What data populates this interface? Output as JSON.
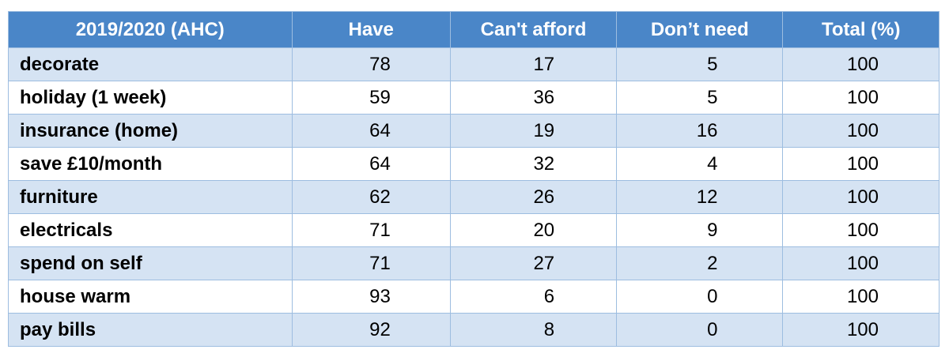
{
  "table": {
    "header": [
      "2019/2020 (AHC)",
      "Have",
      "Can't afford",
      "Don’t need",
      "Total (%)"
    ],
    "rows": [
      [
        "decorate",
        78,
        17,
        5,
        100
      ],
      [
        "holiday (1 week)",
        59,
        36,
        5,
        100
      ],
      [
        "insurance (home)",
        64,
        19,
        16,
        100
      ],
      [
        "save £10/month",
        64,
        32,
        4,
        100
      ],
      [
        "furniture",
        62,
        26,
        12,
        100
      ],
      [
        "electricals",
        71,
        20,
        9,
        100
      ],
      [
        "spend on self",
        71,
        27,
        2,
        100
      ],
      [
        "house warm",
        93,
        6,
        0,
        100
      ],
      [
        "pay bills",
        92,
        8,
        0,
        100
      ]
    ]
  }
}
